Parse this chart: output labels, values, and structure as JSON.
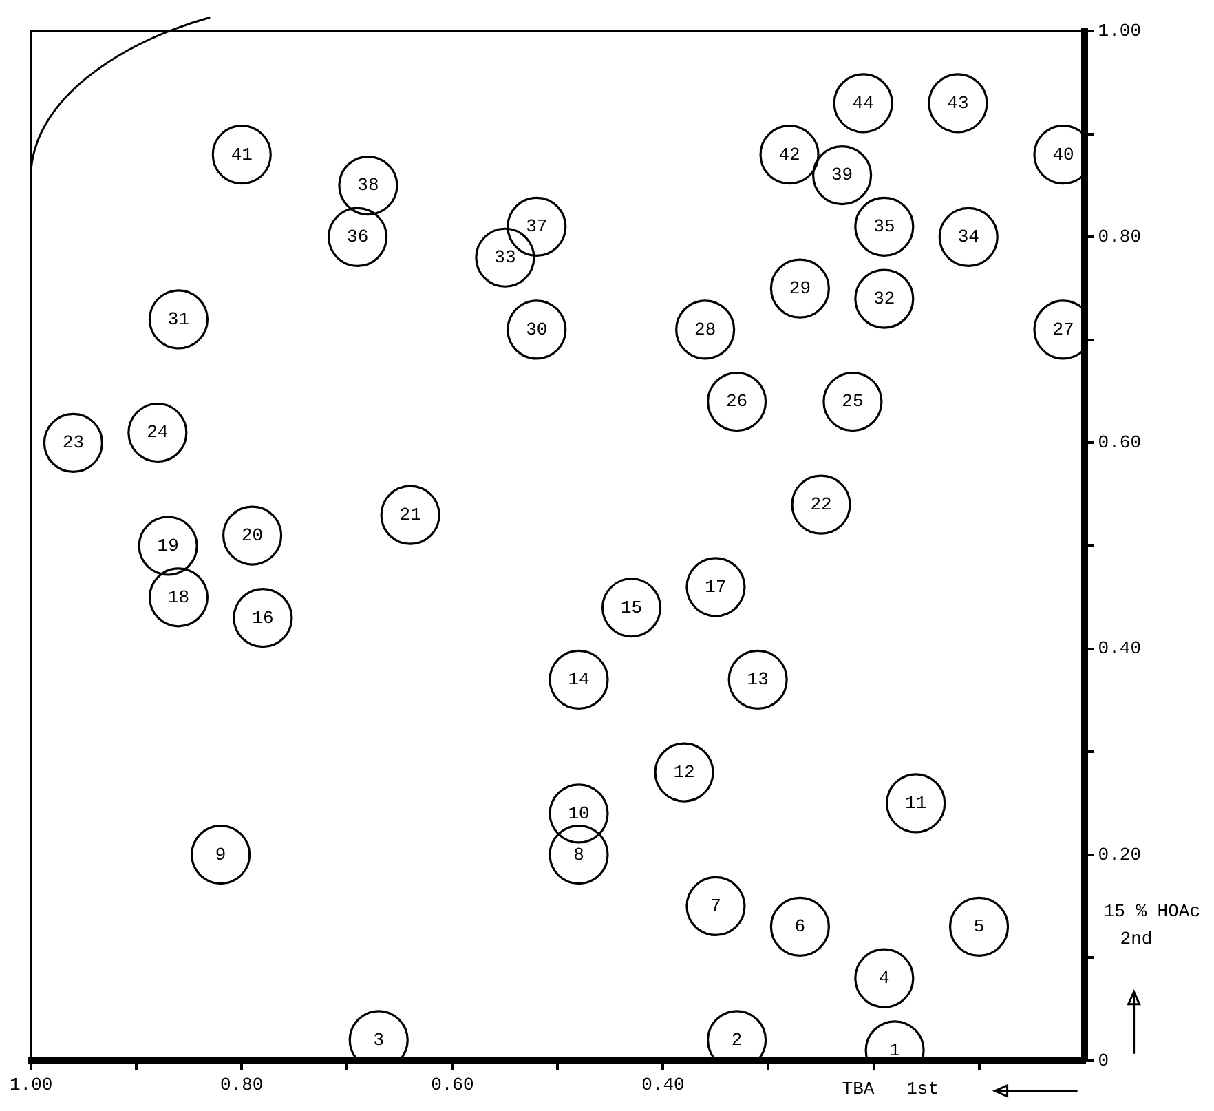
{
  "chart_data": {
    "type": "scatter",
    "xlabel": "TBA   1st",
    "ylabel": "15 % HOAc\n2nd",
    "xlim": [
      1.0,
      0
    ],
    "ylim": [
      0,
      1.0
    ],
    "xticks": [
      {
        "value": 1.0,
        "label": "1.00"
      },
      {
        "value": 0.9,
        "label": null
      },
      {
        "value": 0.8,
        "label": "0.80"
      },
      {
        "value": 0.7,
        "label": null
      },
      {
        "value": 0.6,
        "label": "0.60"
      },
      {
        "value": 0.5,
        "label": null
      },
      {
        "value": 0.4,
        "label": "0.40"
      },
      {
        "value": 0.3,
        "label": null
      },
      {
        "value": 0.2,
        "label": null
      },
      {
        "value": 0.1,
        "label": null
      }
    ],
    "yticks": [
      {
        "value": 0,
        "label": "0"
      },
      {
        "value": 0.1,
        "label": null
      },
      {
        "value": 0.2,
        "label": "0.20"
      },
      {
        "value": 0.3,
        "label": null
      },
      {
        "value": 0.4,
        "label": "0.40"
      },
      {
        "value": 0.5,
        "label": null
      },
      {
        "value": 0.6,
        "label": "0.60"
      },
      {
        "value": 0.7,
        "label": null
      },
      {
        "value": 0.8,
        "label": "0.80"
      },
      {
        "value": 0.9,
        "label": null
      },
      {
        "value": 1.0,
        "label": "1.00"
      }
    ],
    "grid": false,
    "legend": false,
    "marker": "circle",
    "series": [
      {
        "color": "#000000",
        "x": [
          0.18,
          0.33,
          0.67,
          0.19,
          0.1,
          0.27,
          0.35,
          0.48,
          0.82,
          0.48,
          0.16,
          0.38,
          0.31,
          0.48,
          0.43,
          0.78,
          0.35,
          0.86,
          0.87,
          0.79,
          0.64,
          0.25,
          0.96,
          0.88,
          0.22,
          0.33,
          0.02,
          0.36,
          0.27,
          0.52,
          0.86,
          0.19,
          0.55,
          0.11,
          0.19,
          0.69,
          0.52,
          0.68,
          0.23,
          0.02,
          0.8,
          0.28,
          0.12,
          0.21
        ],
        "values": [
          0.01,
          0.02,
          0.02,
          0.08,
          0.13,
          0.13,
          0.15,
          0.2,
          0.2,
          0.24,
          0.25,
          0.28,
          0.37,
          0.37,
          0.44,
          0.43,
          0.46,
          0.45,
          0.5,
          0.51,
          0.53,
          0.54,
          0.6,
          0.61,
          0.64,
          0.64,
          0.71,
          0.71,
          0.75,
          0.71,
          0.72,
          0.74,
          0.78,
          0.8,
          0.81,
          0.8,
          0.81,
          0.85,
          0.86,
          0.88,
          0.88,
          0.88,
          0.93,
          0.93
        ]
      }
    ],
    "annotations": [
      {
        "text": "1",
        "x": 0.18,
        "y": 0.01
      },
      {
        "text": "2",
        "x": 0.33,
        "y": 0.02
      },
      {
        "text": "3",
        "x": 0.67,
        "y": 0.02
      },
      {
        "text": "4",
        "x": 0.19,
        "y": 0.08
      },
      {
        "text": "5",
        "x": 0.1,
        "y": 0.13
      },
      {
        "text": "6",
        "x": 0.27,
        "y": 0.13
      },
      {
        "text": "7",
        "x": 0.35,
        "y": 0.15
      },
      {
        "text": "8",
        "x": 0.48,
        "y": 0.2
      },
      {
        "text": "9",
        "x": 0.82,
        "y": 0.2
      },
      {
        "text": "10",
        "x": 0.48,
        "y": 0.24
      },
      {
        "text": "11",
        "x": 0.16,
        "y": 0.25
      },
      {
        "text": "12",
        "x": 0.38,
        "y": 0.28
      },
      {
        "text": "13",
        "x": 0.31,
        "y": 0.37
      },
      {
        "text": "14",
        "x": 0.48,
        "y": 0.37
      },
      {
        "text": "15",
        "x": 0.43,
        "y": 0.44
      },
      {
        "text": "16",
        "x": 0.78,
        "y": 0.43
      },
      {
        "text": "17",
        "x": 0.35,
        "y": 0.46
      },
      {
        "text": "18",
        "x": 0.86,
        "y": 0.45
      },
      {
        "text": "19",
        "x": 0.87,
        "y": 0.5
      },
      {
        "text": "20",
        "x": 0.79,
        "y": 0.51
      },
      {
        "text": "21",
        "x": 0.64,
        "y": 0.53
      },
      {
        "text": "22",
        "x": 0.25,
        "y": 0.54
      },
      {
        "text": "23",
        "x": 0.96,
        "y": 0.6
      },
      {
        "text": "24",
        "x": 0.88,
        "y": 0.61
      },
      {
        "text": "25",
        "x": 0.22,
        "y": 0.64
      },
      {
        "text": "26",
        "x": 0.33,
        "y": 0.64
      },
      {
        "text": "27",
        "x": 0.02,
        "y": 0.71
      },
      {
        "text": "28",
        "x": 0.36,
        "y": 0.71
      },
      {
        "text": "29",
        "x": 0.27,
        "y": 0.75
      },
      {
        "text": "30",
        "x": 0.52,
        "y": 0.71
      },
      {
        "text": "31",
        "x": 0.86,
        "y": 0.72
      },
      {
        "text": "32",
        "x": 0.19,
        "y": 0.74
      },
      {
        "text": "33",
        "x": 0.55,
        "y": 0.78
      },
      {
        "text": "34",
        "x": 0.11,
        "y": 0.8
      },
      {
        "text": "35",
        "x": 0.19,
        "y": 0.81
      },
      {
        "text": "36",
        "x": 0.69,
        "y": 0.8
      },
      {
        "text": "37",
        "x": 0.52,
        "y": 0.81
      },
      {
        "text": "38",
        "x": 0.68,
        "y": 0.85
      },
      {
        "text": "39",
        "x": 0.23,
        "y": 0.86
      },
      {
        "text": "40",
        "x": 0.02,
        "y": 0.88
      },
      {
        "text": "41",
        "x": 0.8,
        "y": 0.88
      },
      {
        "text": "42",
        "x": 0.28,
        "y": 0.88
      },
      {
        "text": "43",
        "x": 0.12,
        "y": 0.93
      },
      {
        "text": "44",
        "x": 0.21,
        "y": 0.93
      }
    ]
  }
}
